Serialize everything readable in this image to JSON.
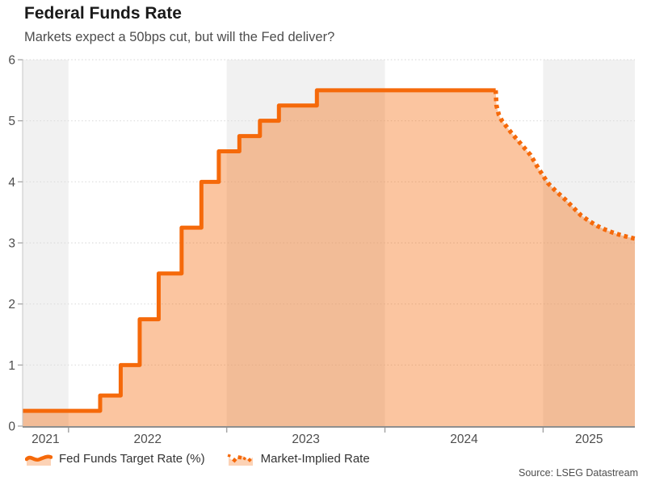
{
  "header": {
    "title": "Federal Funds Rate",
    "subtitle": "Markets expect a 50bps cut, but will the Fed deliver?"
  },
  "legend": [
    {
      "label": "Fed Funds Target Rate (%)",
      "icon": "area-line-swatch-icon"
    },
    {
      "label": "Market-Implied Rate",
      "icon": "dotted-line-swatch-icon"
    }
  ],
  "source": "Source: LSEG Datastream",
  "colors": {
    "accent": "#F5690A",
    "fill_opacity": 0.39,
    "band": "#F1F1F1",
    "grid": "#DCDCDC",
    "x_axis": "#8F8F8F",
    "y_axis": "#C6C6C6",
    "tick": "#A6A6A6",
    "title_text": "#1A1A1A",
    "label_text": "#4D4D4D"
  },
  "chart_data": {
    "type": "area",
    "title": "Federal Funds Rate",
    "subtitle": "Markets expect a 50bps cut, but will the Fed deliver?",
    "xlabel": "",
    "ylabel": "",
    "x_range": [
      2021.71,
      2025.58
    ],
    "ylim": [
      0,
      6
    ],
    "y_ticks": [
      "0",
      "1",
      "2",
      "3",
      "4",
      "5",
      "6"
    ],
    "x_year_labels": [
      "2021",
      "2022",
      "2023",
      "2024",
      "2025"
    ],
    "band_years_shaded": [
      "2021",
      "2023",
      "2025"
    ],
    "grid": "dotted-horizontal",
    "legend_position": "bottom-left",
    "series": [
      {
        "name": "Fed Funds Target Rate (%)",
        "style": "step-solid",
        "fill": true,
        "steps": [
          [
            2021.71,
            0.25
          ],
          [
            2022.2,
            0.5
          ],
          [
            2022.33,
            1.0
          ],
          [
            2022.45,
            1.75
          ],
          [
            2022.57,
            2.5
          ],
          [
            2022.715,
            3.25
          ],
          [
            2022.84,
            4.0
          ],
          [
            2022.95,
            4.5
          ],
          [
            2023.08,
            4.75
          ],
          [
            2023.21,
            5.0
          ],
          [
            2023.33,
            5.25
          ],
          [
            2023.57,
            5.5
          ]
        ],
        "end_x": 2024.7
      },
      {
        "name": "Market-Implied Rate",
        "style": "dotted",
        "fill": true,
        "points": [
          [
            2024.7,
            5.5
          ],
          [
            2024.705,
            5.25
          ],
          [
            2024.72,
            5.1
          ],
          [
            2024.74,
            5.0
          ],
          [
            2024.77,
            4.9
          ],
          [
            2024.8,
            4.8
          ],
          [
            2024.86,
            4.62
          ],
          [
            2024.92,
            4.44
          ],
          [
            2024.97,
            4.22
          ],
          [
            2025.03,
            3.98
          ],
          [
            2025.08,
            3.85
          ],
          [
            2025.14,
            3.71
          ],
          [
            2025.19,
            3.58
          ],
          [
            2025.24,
            3.45
          ],
          [
            2025.29,
            3.36
          ],
          [
            2025.34,
            3.28
          ],
          [
            2025.39,
            3.22
          ],
          [
            2025.44,
            3.17
          ],
          [
            2025.5,
            3.12
          ],
          [
            2025.58,
            3.07
          ]
        ]
      }
    ]
  }
}
